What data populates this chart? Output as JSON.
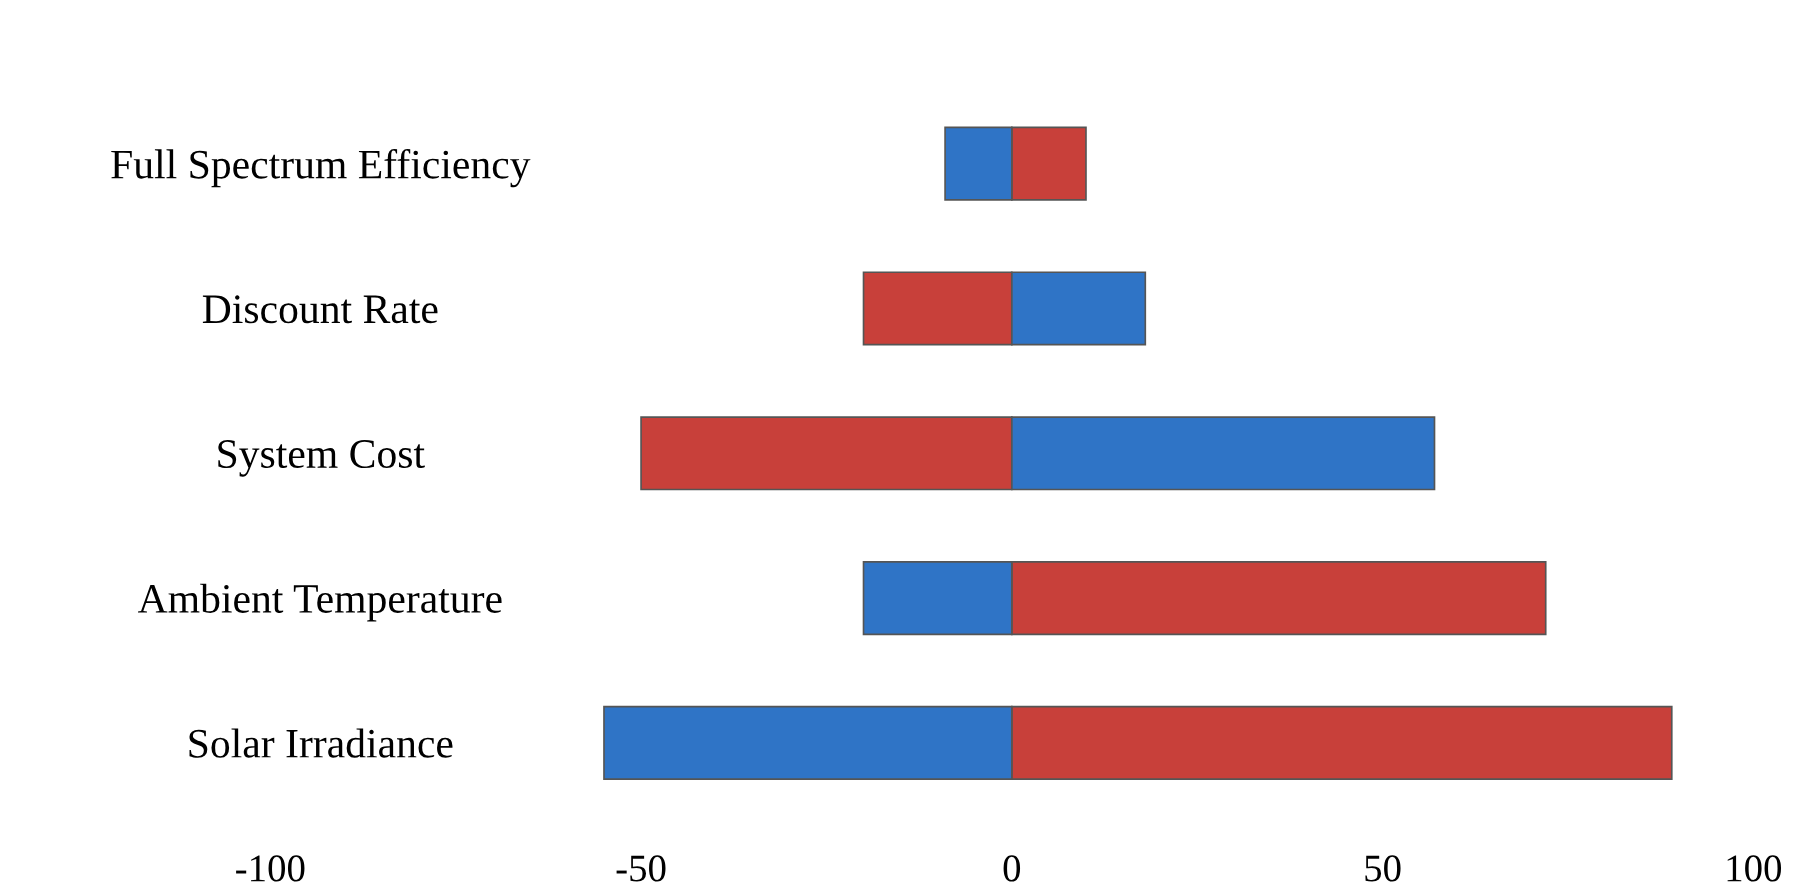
{
  "chart_data": {
    "type": "bar",
    "orientation": "horizontal",
    "stacked": true,
    "categories": [
      "Full Spectrum Efficiency",
      "Discount Rate",
      "System Cost",
      "Ambient Temperature",
      "Solar Irradiance"
    ],
    "series": [
      {
        "color": "#c8403a",
        "values": [
          10,
          -20,
          -50,
          72,
          89
        ]
      },
      {
        "color": "#2f74c6",
        "values": [
          -9,
          18,
          57,
          -20,
          -55
        ]
      }
    ],
    "xlim": [
      -100,
      100
    ],
    "xticks": [
      -100,
      -50,
      0,
      50,
      100
    ],
    "grid": false,
    "legend": false
  }
}
